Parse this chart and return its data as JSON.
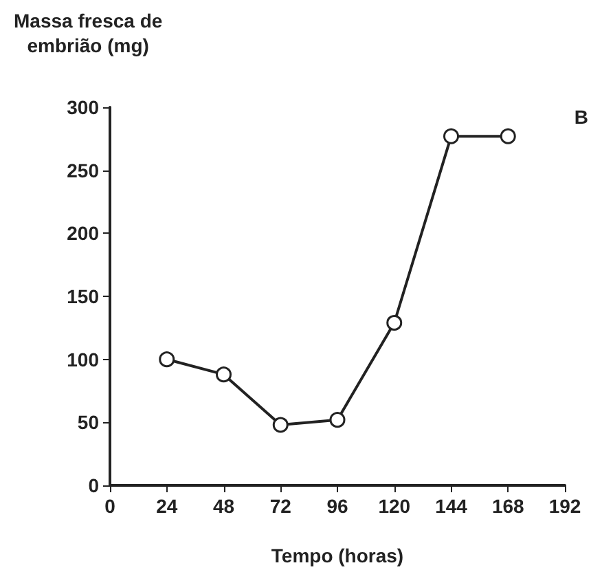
{
  "chart_data": {
    "type": "line",
    "xlabel": "Tempo (horas)",
    "ylabel": "Massa fresca de\nembrião (mg)",
    "annotations": [
      "B"
    ],
    "x": [
      24,
      48,
      72,
      96,
      120,
      144,
      168
    ],
    "series": [
      {
        "color": "#222222",
        "values": [
          100,
          88,
          48,
          52,
          129,
          277,
          277
        ]
      }
    ],
    "xlim": [
      0,
      192
    ],
    "xticks": [
      0,
      24,
      48,
      72,
      96,
      120,
      144,
      168,
      192
    ],
    "ylim": [
      0,
      300
    ],
    "yticks": [
      0,
      50,
      100,
      150,
      200,
      250,
      300
    ],
    "marker": "circle",
    "line_style": "solid"
  }
}
